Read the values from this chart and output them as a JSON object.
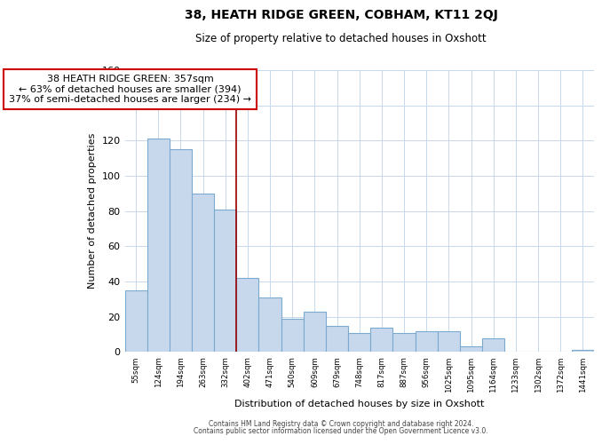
{
  "title": "38, HEATH RIDGE GREEN, COBHAM, KT11 2QJ",
  "subtitle": "Size of property relative to detached houses in Oxshott",
  "xlabel": "Distribution of detached houses by size in Oxshott",
  "ylabel": "Number of detached properties",
  "bar_labels": [
    "55sqm",
    "124sqm",
    "194sqm",
    "263sqm",
    "332sqm",
    "402sqm",
    "471sqm",
    "540sqm",
    "609sqm",
    "679sqm",
    "748sqm",
    "817sqm",
    "887sqm",
    "956sqm",
    "1025sqm",
    "1095sqm",
    "1164sqm",
    "1233sqm",
    "1302sqm",
    "1372sqm",
    "1441sqm"
  ],
  "bar_values": [
    35,
    121,
    115,
    90,
    81,
    42,
    31,
    19,
    23,
    15,
    11,
    14,
    11,
    12,
    12,
    3,
    8,
    0,
    0,
    0,
    1
  ],
  "bar_color": "#c8d8ec",
  "bar_edge_color": "#7aaad0",
  "annotation_line1": "38 HEATH RIDGE GREEN: 357sqm",
  "annotation_line2": "← 63% of detached houses are smaller (394)",
  "annotation_line3": "37% of semi-detached houses are larger (234) →",
  "annotation_box_edge": "#cc0000",
  "ylim": [
    0,
    160
  ],
  "yticks": [
    0,
    20,
    40,
    60,
    80,
    100,
    120,
    140,
    160
  ],
  "footer_line1": "Contains HM Land Registry data © Crown copyright and database right 2024.",
  "footer_line2": "Contains public sector information licensed under the Open Government Licence v3.0.",
  "bg_color": "#ffffff",
  "grid_color": "#c8d8ec"
}
